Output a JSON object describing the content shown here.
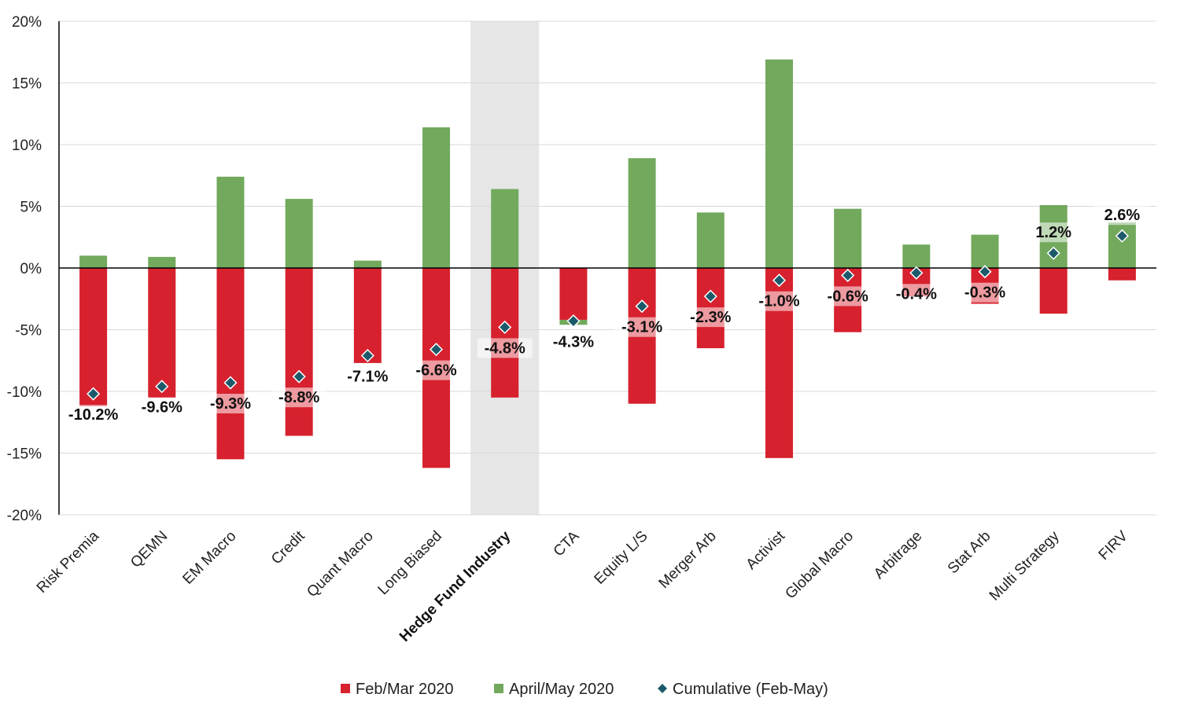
{
  "chart_data": {
    "type": "bar",
    "stacked": true,
    "categories": [
      "Risk Premia",
      "QEMN",
      "EM Macro",
      "Credit",
      "Quant Macro",
      "Long Biased",
      "Hedge Fund Industry",
      "CTA",
      "Equity L/S",
      "Merger Arb",
      "Activist",
      "Global Macro",
      "Arbitrage",
      "Stat Arb",
      "Multi Strategy",
      "FIRV"
    ],
    "highlight_category": "Hedge Fund Industry",
    "series": [
      {
        "name": "Feb/Mar 2020",
        "color": "#d7212e",
        "marker": "square",
        "values": [
          -11.2,
          -10.5,
          -15.5,
          -13.6,
          -7.7,
          -16.2,
          -10.5,
          -4.2,
          -11.0,
          -6.5,
          -15.4,
          -5.2,
          -2.3,
          -2.9,
          -3.7,
          -1.0
        ]
      },
      {
        "name": "April/May 2020",
        "color": "#72a95d",
        "marker": "square",
        "values": [
          1.0,
          0.9,
          7.4,
          5.6,
          0.6,
          11.4,
          6.4,
          -0.4,
          8.9,
          4.5,
          16.9,
          4.8,
          1.9,
          2.7,
          5.1,
          3.7
        ]
      },
      {
        "name": "Cumulative (Feb-May)",
        "color": "#1c5a6b",
        "marker": "diamond",
        "type": "scatter",
        "values": [
          -10.2,
          -9.6,
          -9.3,
          -8.8,
          -7.1,
          -6.6,
          -4.8,
          -4.3,
          -3.1,
          -2.3,
          -1.0,
          -0.6,
          -0.4,
          -0.3,
          1.2,
          2.6
        ]
      }
    ],
    "data_labels": [
      "-10.2%",
      "-9.6%",
      "-9.3%",
      "-8.8%",
      "-7.1%",
      "-6.6%",
      "-4.8%",
      "-4.3%",
      "-3.1%",
      "-2.3%",
      "-1.0%",
      "-0.6%",
      "-0.4%",
      "-0.3%",
      "1.2%",
      "2.6%"
    ],
    "yticks": [
      "20%",
      "15%",
      "10%",
      "5%",
      "0%",
      "-5%",
      "-10%",
      "-15%",
      "-20%"
    ],
    "ylim": [
      -20,
      20
    ],
    "ytick_step": 5,
    "grid": true,
    "legend_position": "bottom",
    "title": "",
    "xlabel": "",
    "ylabel": ""
  }
}
